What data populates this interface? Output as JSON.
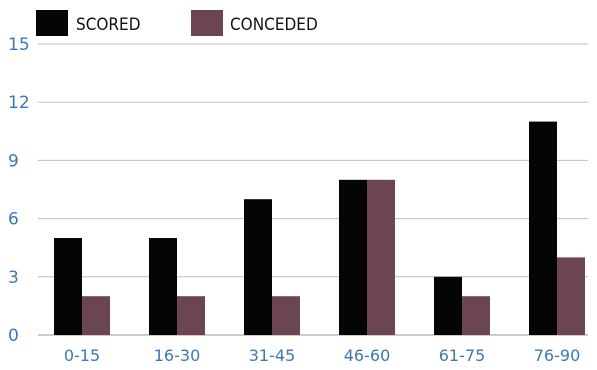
{
  "chart_data": {
    "type": "bar",
    "categories": [
      "0-15",
      "16-30",
      "31-45",
      "46-60",
      "61-75",
      "76-90"
    ],
    "series": [
      {
        "name": "SCORED",
        "values": [
          5,
          5,
          7,
          8,
          3,
          11
        ],
        "color": "#050505"
      },
      {
        "name": "CONCEDED",
        "values": [
          2,
          2,
          2,
          8,
          2,
          4
        ],
        "color": "#6b4550"
      }
    ],
    "yticks": [
      0,
      3,
      6,
      9,
      12,
      15
    ],
    "ylim": [
      0,
      15
    ],
    "grid": true,
    "legend_position": "top-left",
    "tick_color": "#3b78b6",
    "grid_color": "#bfbfbf"
  }
}
